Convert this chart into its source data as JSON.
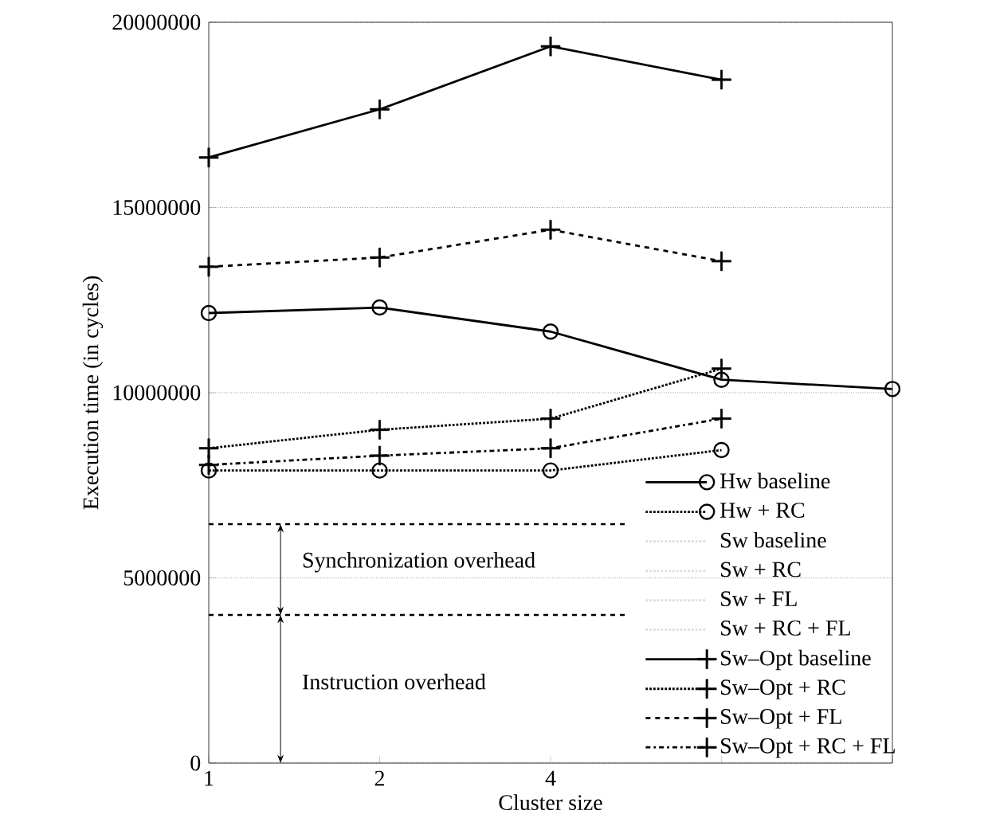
{
  "chart_data": {
    "type": "line",
    "xlabel": "Cluster size",
    "ylabel": "Execution time (in cycles)",
    "categories": [
      "1",
      "2",
      "4",
      null,
      null
    ],
    "ylim": [
      0,
      20000000
    ],
    "yticks": [
      0,
      5000000,
      10000000,
      15000000,
      20000000
    ],
    "grid": "y",
    "legend": "bottom right",
    "series": [
      {
        "name": "Hw baseline",
        "color": "#000000",
        "marker": "circle",
        "line_style": "solid",
        "values": [
          12150000,
          12300000,
          11650000,
          10350000,
          10100000
        ]
      },
      {
        "name": "Hw + RC",
        "color": "#000000",
        "marker": "circle",
        "line_style": "dotted",
        "values": [
          7900000,
          7900000,
          7900000,
          8450000,
          null
        ]
      },
      {
        "name": "Sw baseline",
        "color": "#dddddd",
        "marker": "none",
        "line_style": "dotted",
        "values": [
          null,
          null,
          null,
          null,
          null
        ]
      },
      {
        "name": "Sw + RC",
        "color": "#dddddd",
        "marker": "none",
        "line_style": "dotted",
        "values": [
          null,
          null,
          null,
          null,
          null
        ]
      },
      {
        "name": "Sw + FL",
        "color": "#dddddd",
        "marker": "none",
        "line_style": "dotted",
        "values": [
          null,
          null,
          null,
          null,
          null
        ]
      },
      {
        "name": "Sw + RC + FL",
        "color": "#dddddd",
        "marker": "none",
        "line_style": "dotted",
        "values": [
          null,
          null,
          null,
          null,
          null
        ]
      },
      {
        "name": "Sw–Opt baseline",
        "color": "#000000",
        "marker": "cross",
        "line_style": "solid",
        "values": [
          16350000,
          17650000,
          19350000,
          18450000,
          null
        ]
      },
      {
        "name": "Sw–Opt + RC",
        "color": "#000000",
        "marker": "cross",
        "line_style": "dotted",
        "values": [
          8500000,
          9000000,
          9300000,
          10650000,
          null
        ]
      },
      {
        "name": "Sw–Opt + FL",
        "color": "#000000",
        "marker": "cross",
        "line_style": "dashed",
        "values": [
          13400000,
          13650000,
          14400000,
          13550000,
          null
        ]
      },
      {
        "name": "Sw–Opt + RC + FL",
        "color": "#000000",
        "marker": "cross",
        "line_style": "dashdot",
        "values": [
          8050000,
          8300000,
          8500000,
          9300000,
          null
        ]
      }
    ],
    "ref_lines": [
      {
        "axis": "y",
        "value": 6450000,
        "line_style": "dashed"
      },
      {
        "axis": "y",
        "value": 4000000,
        "line_style": "dashed"
      }
    ],
    "annotations": [
      "Synchronization overhead",
      "Instruction overhead"
    ]
  }
}
